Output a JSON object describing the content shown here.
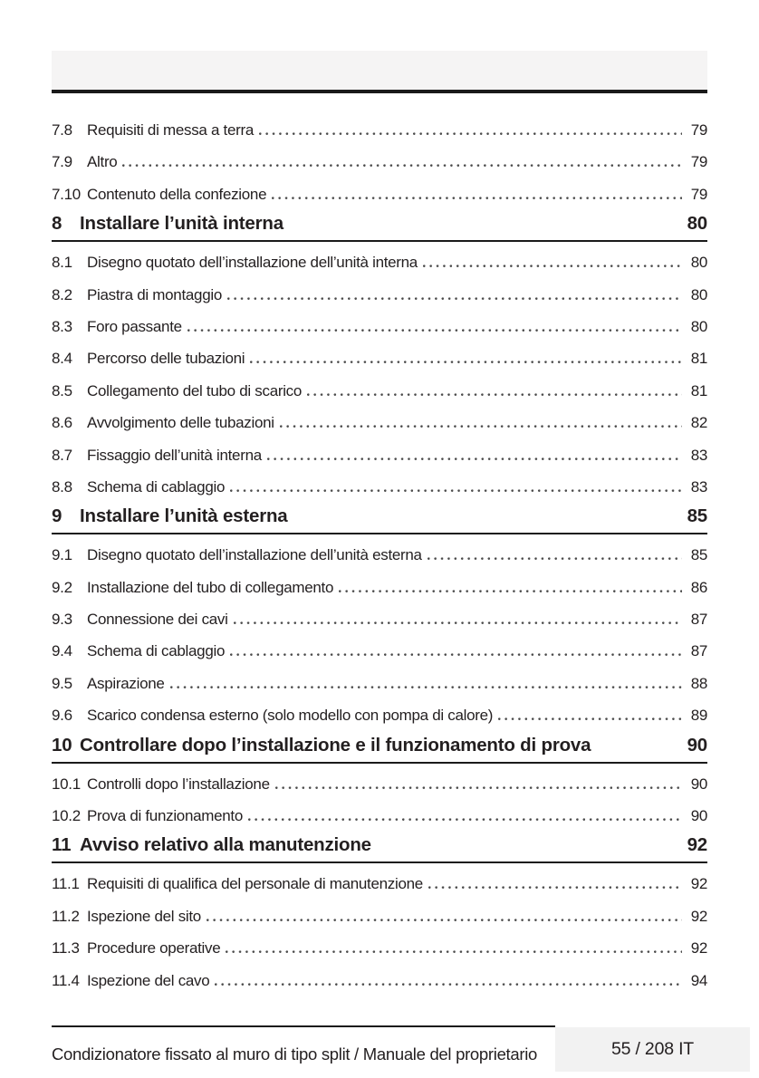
{
  "colors": {
    "text": "#231f20",
    "rule": "#1a1a1a",
    "band": "#f5f4f4",
    "badge": "#f2f2f2",
    "dots": "#4a4a4a"
  },
  "footer": {
    "left_text": "Condizionatore fissato al muro di tipo split / Manuale del proprietario",
    "page_indicator": "55 / 208 IT"
  },
  "toc": {
    "items": [
      {
        "type": "entry",
        "num": "7.8",
        "title": "Requisiti di messa a terra",
        "page": "79"
      },
      {
        "type": "entry",
        "num": "7.9",
        "title": "Altro",
        "page": "79"
      },
      {
        "type": "entry",
        "num": "7.10",
        "title": "Contenuto della confezione",
        "page": "79"
      },
      {
        "type": "section",
        "num": "8",
        "title": "Installare l’unità interna",
        "page": "80"
      },
      {
        "type": "entry",
        "num": "8.1",
        "title": "Disegno quotato dell’installazione dell’unità interna",
        "page": "80"
      },
      {
        "type": "entry",
        "num": "8.2",
        "title": "Piastra di montaggio",
        "page": "80"
      },
      {
        "type": "entry",
        "num": "8.3",
        "title": "Foro passante",
        "page": "80"
      },
      {
        "type": "entry",
        "num": "8.4",
        "title": "Percorso delle tubazioni",
        "page": "81"
      },
      {
        "type": "entry",
        "num": "8.5",
        "title": "Collegamento del tubo di scarico",
        "page": "81"
      },
      {
        "type": "entry",
        "num": "8.6",
        "title": "Avvolgimento delle tubazioni",
        "page": "82"
      },
      {
        "type": "entry",
        "num": "8.7",
        "title": "Fissaggio dell’unità interna",
        "page": "83"
      },
      {
        "type": "entry",
        "num": "8.8",
        "title": "Schema di cablaggio",
        "page": "83"
      },
      {
        "type": "section",
        "num": "9",
        "title": "Installare l’unità esterna",
        "page": "85"
      },
      {
        "type": "entry",
        "num": "9.1",
        "title": "Disegno quotato dell’installazione dell’unità esterna",
        "page": "85"
      },
      {
        "type": "entry",
        "num": "9.2",
        "title": "Installazione del tubo di collegamento",
        "page": "86"
      },
      {
        "type": "entry",
        "num": "9.3",
        "title": "Connessione dei cavi",
        "page": "87"
      },
      {
        "type": "entry",
        "num": "9.4",
        "title": "Schema di cablaggio",
        "page": "87"
      },
      {
        "type": "entry",
        "num": "9.5",
        "title": "Aspirazione",
        "page": "88"
      },
      {
        "type": "entry",
        "num": "9.6",
        "title": "Scarico condensa esterno (solo modello con pompa di calore)",
        "page": "89"
      },
      {
        "type": "section",
        "num": "10",
        "title": "Controllare dopo l’installazione e il funzionamento di prova",
        "page": "90"
      },
      {
        "type": "entry",
        "num": "10.1",
        "title": "Controlli dopo l’installazione",
        "page": "90"
      },
      {
        "type": "entry",
        "num": "10.2",
        "title": "Prova di funzionamento",
        "page": "90"
      },
      {
        "type": "section",
        "num": "11",
        "title": "Avviso relativo alla manutenzione",
        "page": "92"
      },
      {
        "type": "entry",
        "num": "11.1",
        "title": "Requisiti di qualifica del personale di manutenzione",
        "page": "92"
      },
      {
        "type": "entry",
        "num": "11.2",
        "title": "Ispezione del sito",
        "page": "92"
      },
      {
        "type": "entry",
        "num": "11.3",
        "title": "Procedure operative",
        "page": "92"
      },
      {
        "type": "entry",
        "num": "11.4",
        "title": "Ispezione del cavo",
        "page": "94"
      }
    ]
  }
}
